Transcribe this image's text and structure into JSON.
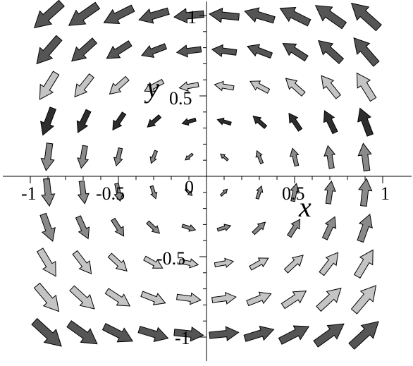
{
  "chart_data": {
    "type": "vector_field",
    "title": "",
    "xlabel": "x",
    "ylabel": "y",
    "xlim": [
      -1.05,
      1.05
    ],
    "ylim": [
      -1.05,
      1.05
    ],
    "grid": false,
    "x_ticks": [
      {
        "value": -1,
        "label": "-1"
      },
      {
        "value": -0.5,
        "label": "-0.5"
      },
      {
        "value": 0,
        "label": "0"
      },
      {
        "value": 0.5,
        "label": "0.5"
      },
      {
        "value": 1,
        "label": "1"
      }
    ],
    "y_ticks": [
      {
        "value": 1,
        "label": "1"
      },
      {
        "value": 0.5,
        "label": "0.5"
      },
      {
        "value": -0.5,
        "label": "-0.5"
      },
      {
        "value": -1,
        "label": "-1"
      }
    ],
    "x_samples": [
      -0.9,
      -0.7,
      -0.5,
      -0.3,
      -0.1,
      0.1,
      0.3,
      0.5,
      0.7,
      0.9
    ],
    "y_samples": [
      1.0,
      0.78,
      0.56,
      0.34,
      0.12,
      -0.1,
      -0.32,
      -0.54,
      -0.76,
      -0.98
    ],
    "color_scheme": {
      "dark": "#555555",
      "darkest": "#2e2e2e",
      "mid": "#8a8a8a",
      "light": "#c4c4c4"
    }
  }
}
